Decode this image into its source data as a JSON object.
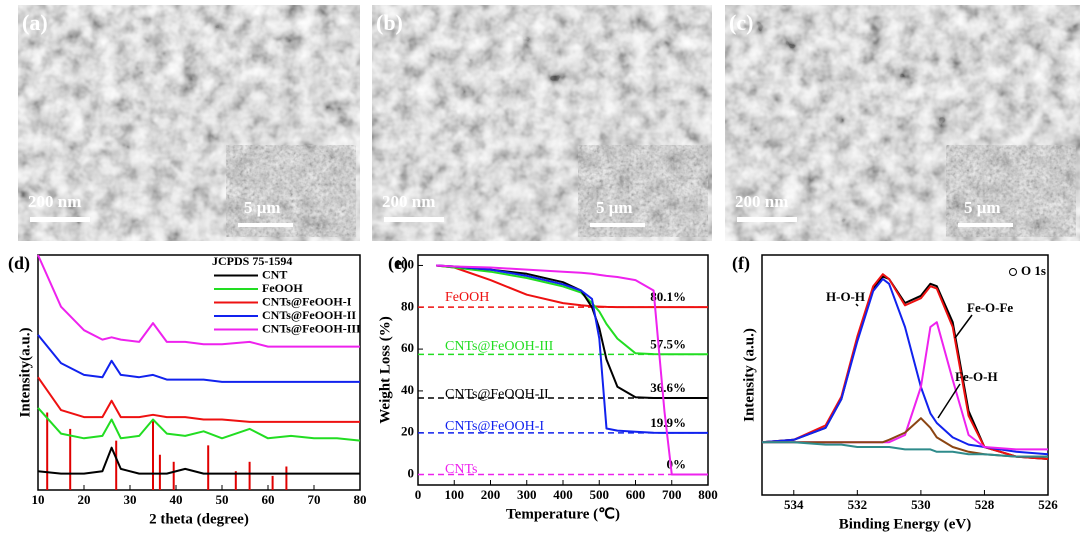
{
  "panels": [
    {
      "label": "(a)",
      "scale_bar": "200 nm",
      "inset_scale_bar": "5 μm"
    },
    {
      "label": "(b)",
      "scale_bar": "200 nm",
      "inset_scale_bar": "5 μm"
    },
    {
      "label": "(c)",
      "scale_bar": "200 nm",
      "inset_scale_bar": "5 μm"
    }
  ],
  "chart_data": [
    {
      "type": "line",
      "label": "(d)",
      "xlabel": "2 theta (degree)",
      "ylabel": "Intensity(a.u.)",
      "xlim": [
        10,
        80
      ],
      "xticks": [
        10,
        20,
        30,
        40,
        50,
        60,
        70,
        80
      ],
      "ylim": [
        0,
        100
      ],
      "x": [
        10,
        15,
        20,
        24,
        26,
        28,
        32,
        35,
        38,
        42,
        46,
        50,
        56,
        60,
        65,
        70,
        75,
        80
      ],
      "series": [
        {
          "name": "JCPDS 75-1594",
          "color": "#e00000",
          "style": "stick",
          "x": [
            12,
            17,
            27,
            35,
            36.5,
            39.5,
            47,
            53,
            56,
            61,
            64
          ],
          "values": [
            33,
            26,
            21,
            30,
            15,
            12,
            19,
            8,
            12,
            6,
            10
          ]
        },
        {
          "name": "CNT",
          "color": "#000000",
          "values": [
            8,
            7,
            7,
            8,
            18,
            9,
            7,
            7,
            7,
            9,
            7,
            7,
            7,
            7,
            7,
            7,
            7,
            7
          ]
        },
        {
          "name": "FeOOH",
          "color": "#22dd22",
          "values": [
            35,
            24,
            22,
            23,
            30,
            22,
            23,
            30,
            24,
            23,
            25,
            22,
            26,
            22,
            23,
            22,
            22,
            21
          ]
        },
        {
          "name": "CNTs@FeOOH-I",
          "color": "#ee1111",
          "values": [
            48,
            34,
            31,
            31,
            38,
            31,
            31,
            32,
            31,
            31,
            30,
            30,
            29,
            29,
            29,
            29,
            29,
            29
          ]
        },
        {
          "name": "CNTs@FeOOH-II",
          "color": "#1122ee",
          "values": [
            66,
            54,
            49,
            48,
            55,
            49,
            48,
            49,
            47,
            47,
            47,
            46,
            46,
            46,
            46,
            46,
            46,
            46
          ]
        },
        {
          "name": "CNTs@FeOOH-III",
          "color": "#ee22ee",
          "values": [
            100,
            78,
            68,
            64,
            65,
            64,
            63,
            71,
            63,
            63,
            62,
            62,
            63,
            61,
            61,
            61,
            61,
            61
          ]
        }
      ]
    },
    {
      "type": "line",
      "label": "(e)",
      "xlabel": "Temperature (℃)",
      "ylabel": "Weight Loss (%)",
      "xlim": [
        0,
        800
      ],
      "xticks": [
        0,
        100,
        200,
        300,
        400,
        500,
        600,
        700,
        800
      ],
      "ylim": [
        -5,
        105
      ],
      "yticks": [
        0,
        20,
        40,
        60,
        80,
        100
      ],
      "x": [
        50,
        100,
        200,
        300,
        400,
        450,
        480,
        500,
        520,
        550,
        600,
        650,
        680,
        700,
        800
      ],
      "series": [
        {
          "name": "FeOOH",
          "color": "#ee1111",
          "values": [
            100,
            99,
            93,
            86,
            82,
            81,
            80.5,
            80.3,
            80.2,
            80.1,
            80.1,
            80.1,
            80.1,
            80.1,
            80.1
          ]
        },
        {
          "name": "CNTs@FeOOH-III",
          "color": "#22dd22",
          "values": [
            100,
            99,
            97,
            94,
            90,
            87,
            82,
            78,
            72,
            65,
            58,
            57.6,
            57.5,
            57.5,
            57.5
          ]
        },
        {
          "name": "CNTs@FeOOH-II",
          "color": "#000000",
          "values": [
            100,
            99.5,
            98,
            96,
            92,
            88,
            80,
            70,
            55,
            42,
            37,
            36.6,
            36.6,
            36.6,
            36.6
          ]
        },
        {
          "name": "CNTs@FeOOH-I",
          "color": "#1122ee",
          "values": [
            100,
            99.5,
            98,
            95,
            91,
            88,
            84,
            65,
            22,
            21,
            20.5,
            20,
            19.9,
            19.9,
            19.9
          ]
        },
        {
          "name": "CNTs",
          "color": "#ee22ee",
          "values": [
            100,
            99.5,
            99,
            98,
            97,
            96.5,
            96,
            95.5,
            95,
            94.5,
            93,
            88,
            30,
            0,
            0
          ]
        }
      ],
      "reference_lines": [
        {
          "value": 80.1,
          "label": "80.1%",
          "color": "#ee1111"
        },
        {
          "value": 57.5,
          "label": "57.5%",
          "color": "#22dd22"
        },
        {
          "value": 36.6,
          "label": "36.6%",
          "color": "#000000"
        },
        {
          "value": 19.9,
          "label": "19.9%",
          "color": "#1122ee"
        },
        {
          "value": 0,
          "label": "0%",
          "color": "#ee22ee"
        }
      ]
    },
    {
      "type": "line",
      "label": "(f)",
      "xlabel": "Binding Energy (eV)",
      "ylabel": "Intensity (a.u.)",
      "xlim": [
        535,
        526
      ],
      "xticks": [
        534,
        532,
        530,
        528,
        526
      ],
      "ylim": [
        0,
        100
      ],
      "x": [
        535,
        534,
        533,
        532.5,
        532,
        531.5,
        531.2,
        531,
        530.5,
        530,
        529.7,
        529.5,
        529,
        528.5,
        528,
        527,
        526
      ],
      "series": [
        {
          "name": "O 1s",
          "color": "#000000",
          "values": [
            22,
            23,
            28,
            40,
            65,
            86,
            91,
            90,
            80,
            83,
            88,
            87,
            72,
            35,
            20,
            16,
            15
          ]
        },
        {
          "color": "#ee1111",
          "values": [
            22,
            23,
            29,
            41,
            66,
            87,
            92,
            90,
            79,
            82,
            87,
            86,
            70,
            33,
            20,
            16,
            15
          ]
        },
        {
          "name": "H-O-H",
          "color": "#1122ee",
          "values": [
            22,
            23,
            28,
            40,
            64,
            85,
            90,
            88,
            70,
            45,
            34,
            30,
            24,
            21,
            20,
            18,
            17
          ]
        },
        {
          "name": "Fe-O-Fe",
          "color": "#ee22ee",
          "values": [
            22,
            22,
            22,
            22,
            22,
            22,
            22,
            22,
            25,
            45,
            70,
            72,
            48,
            25,
            20,
            19,
            19
          ]
        },
        {
          "name": "Fe-O-H",
          "color": "#8b4513",
          "values": [
            22,
            22,
            22,
            22,
            22,
            22,
            22,
            23,
            26,
            32,
            28,
            24,
            20,
            18,
            17,
            16,
            16
          ]
        },
        {
          "color": "#2e8b8b",
          "values": [
            22,
            22,
            21,
            21,
            20,
            20,
            20,
            20,
            19,
            19,
            19,
            18,
            18,
            17,
            17,
            16,
            16
          ]
        }
      ]
    }
  ]
}
